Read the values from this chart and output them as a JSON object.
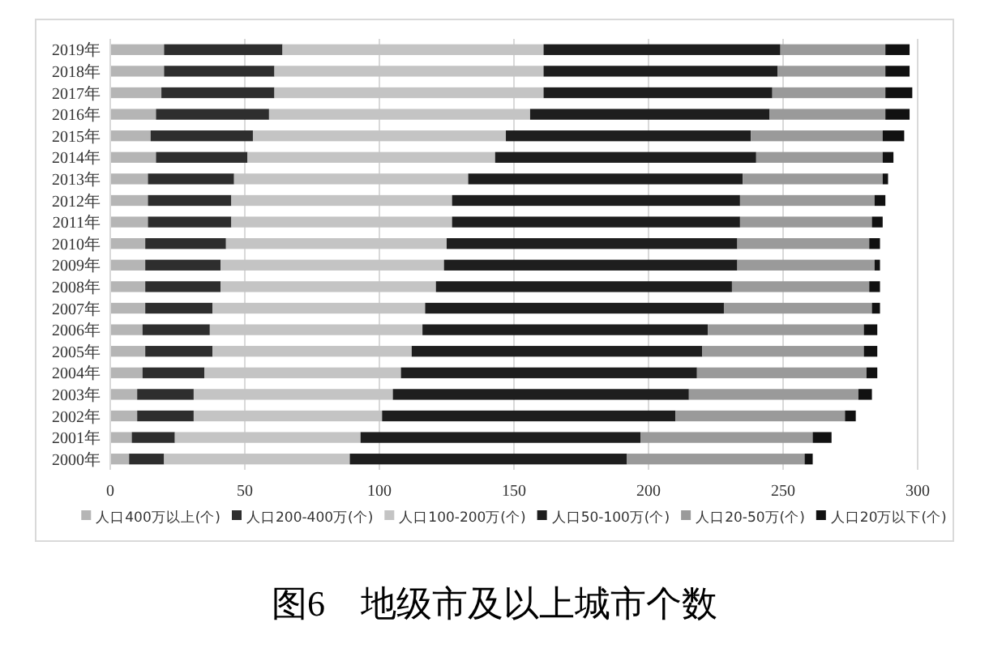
{
  "chart_data": {
    "type": "bar",
    "orientation": "horizontal",
    "stacked": true,
    "title": "图6　地级市及以上城市个数",
    "categories": [
      "2019年",
      "2018年",
      "2017年",
      "2016年",
      "2015年",
      "2014年",
      "2013年",
      "2012年",
      "2011年",
      "2010年",
      "2009年",
      "2008年",
      "2007年",
      "2006年",
      "2005年",
      "2004年",
      "2003年",
      "2002年",
      "2001年",
      "2000年"
    ],
    "series": [
      {
        "name": "人口400万以上(个)",
        "color": "#b5b5b5",
        "values": [
          20,
          20,
          19,
          17,
          15,
          17,
          14,
          14,
          14,
          13,
          13,
          13,
          13,
          12,
          13,
          12,
          10,
          10,
          8,
          7
        ]
      },
      {
        "name": "人口200-400万(个)",
        "color": "#2e2e2e",
        "values": [
          44,
          41,
          42,
          42,
          38,
          34,
          32,
          31,
          31,
          30,
          28,
          28,
          25,
          25,
          25,
          23,
          21,
          21,
          16,
          13
        ]
      },
      {
        "name": "人口100-200万(个)",
        "color": "#c4c4c4",
        "values": [
          97,
          100,
          100,
          97,
          94,
          92,
          87,
          82,
          82,
          82,
          83,
          80,
          79,
          79,
          74,
          73,
          74,
          70,
          69,
          69
        ]
      },
      {
        "name": "人口50-100万(个)",
        "color": "#1e1e1e",
        "values": [
          88,
          87,
          85,
          89,
          91,
          97,
          102,
          107,
          107,
          108,
          109,
          110,
          111,
          106,
          108,
          110,
          110,
          109,
          104,
          103
        ]
      },
      {
        "name": "人口20-50万(个)",
        "color": "#9a9a9a",
        "values": [
          39,
          40,
          42,
          43,
          49,
          47,
          52,
          50,
          49,
          49,
          51,
          51,
          55,
          58,
          60,
          63,
          63,
          63,
          64,
          66
        ]
      },
      {
        "name": "人口20万以下(个)",
        "color": "#111111",
        "values": [
          9,
          9,
          10,
          9,
          8,
          4,
          2,
          4,
          4,
          4,
          2,
          4,
          3,
          5,
          5,
          4,
          5,
          4,
          7,
          3
        ]
      }
    ],
    "xlim": [
      0,
      300
    ],
    "xticks": [
      0,
      50,
      100,
      150,
      200,
      250,
      300
    ],
    "grid": "x",
    "legend": "bottom"
  }
}
